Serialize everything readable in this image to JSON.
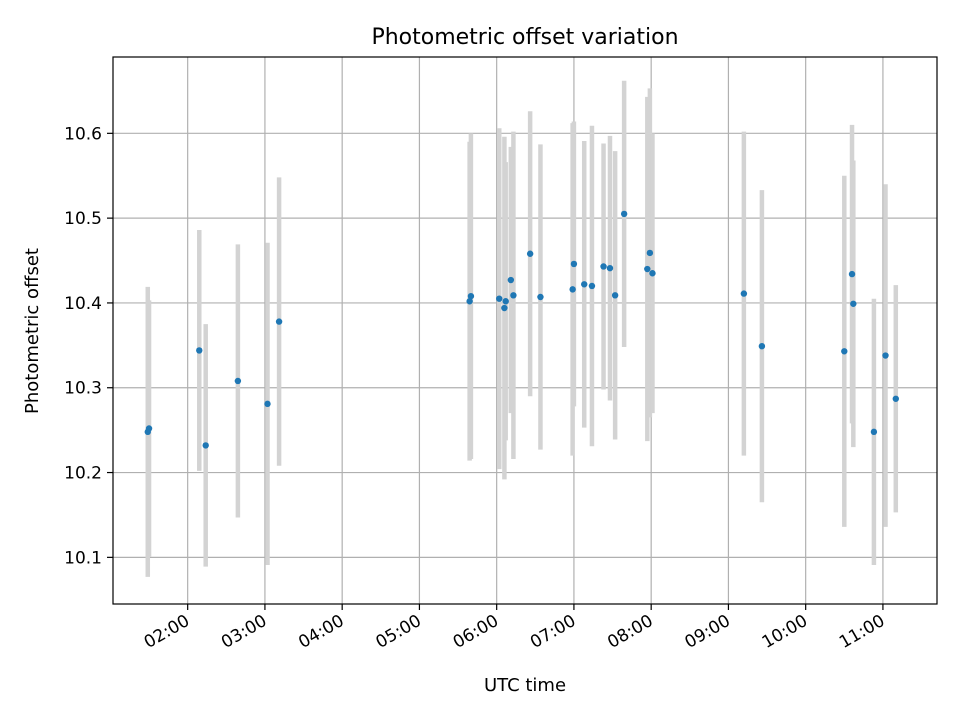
{
  "chart_data": {
    "type": "scatter",
    "title": "Photometric offset variation",
    "xlabel": "UTC time",
    "ylabel": "Photometric offset",
    "x_unit": "UTC hours",
    "xlim": [
      "01:02",
      "11:42"
    ],
    "ylim": [
      10.045,
      10.69
    ],
    "grid": true,
    "xticks": [
      "02:00",
      "03:00",
      "04:00",
      "05:00",
      "06:00",
      "07:00",
      "08:00",
      "09:00",
      "10:00",
      "11:00"
    ],
    "yticks": [
      "10.1",
      "10.2",
      "10.3",
      "10.4",
      "10.5",
      "10.6"
    ],
    "colors": {
      "point": "#1f77b4",
      "errorbar": "#d3d3d3",
      "grid": "#b0b0b0"
    },
    "series": [
      {
        "points": [
          {
            "x": "01:29",
            "y": 10.248,
            "ylow": 10.077,
            "yhigh": 10.419
          },
          {
            "x": "01:30",
            "y": 10.252,
            "ylow": 10.101,
            "yhigh": 10.403
          },
          {
            "x": "02:09",
            "y": 10.344,
            "ylow": 10.202,
            "yhigh": 10.486
          },
          {
            "x": "02:14",
            "y": 10.232,
            "ylow": 10.089,
            "yhigh": 10.375
          },
          {
            "x": "02:39",
            "y": 10.308,
            "ylow": 10.147,
            "yhigh": 10.469
          },
          {
            "x": "03:02",
            "y": 10.281,
            "ylow": 10.091,
            "yhigh": 10.471
          },
          {
            "x": "03:11",
            "y": 10.378,
            "ylow": 10.208,
            "yhigh": 10.548
          },
          {
            "x": "05:39",
            "y": 10.402,
            "ylow": 10.214,
            "yhigh": 10.59
          },
          {
            "x": "05:40",
            "y": 10.408,
            "ylow": 10.216,
            "yhigh": 10.6
          },
          {
            "x": "06:02",
            "y": 10.405,
            "ylow": 10.204,
            "yhigh": 10.606
          },
          {
            "x": "06:06",
            "y": 10.394,
            "ylow": 10.192,
            "yhigh": 10.596
          },
          {
            "x": "06:07",
            "y": 10.402,
            "ylow": 10.238,
            "yhigh": 10.566
          },
          {
            "x": "06:11",
            "y": 10.427,
            "ylow": 10.27,
            "yhigh": 10.584
          },
          {
            "x": "06:13",
            "y": 10.409,
            "ylow": 10.216,
            "yhigh": 10.602
          },
          {
            "x": "06:26",
            "y": 10.458,
            "ylow": 10.29,
            "yhigh": 10.626
          },
          {
            "x": "06:34",
            "y": 10.407,
            "ylow": 10.227,
            "yhigh": 10.587
          },
          {
            "x": "06:59",
            "y": 10.416,
            "ylow": 10.22,
            "yhigh": 10.612
          },
          {
            "x": "07:00",
            "y": 10.446,
            "ylow": 10.278,
            "yhigh": 10.614
          },
          {
            "x": "07:08",
            "y": 10.422,
            "ylow": 10.253,
            "yhigh": 10.591
          },
          {
            "x": "07:14",
            "y": 10.42,
            "ylow": 10.231,
            "yhigh": 10.609
          },
          {
            "x": "07:23",
            "y": 10.443,
            "ylow": 10.298,
            "yhigh": 10.588
          },
          {
            "x": "07:28",
            "y": 10.441,
            "ylow": 10.285,
            "yhigh": 10.597
          },
          {
            "x": "07:32",
            "y": 10.409,
            "ylow": 10.239,
            "yhigh": 10.579
          },
          {
            "x": "07:39",
            "y": 10.505,
            "ylow": 10.348,
            "yhigh": 10.662
          },
          {
            "x": "07:57",
            "y": 10.44,
            "ylow": 10.237,
            "yhigh": 10.643
          },
          {
            "x": "07:59",
            "y": 10.459,
            "ylow": 10.265,
            "yhigh": 10.653
          },
          {
            "x": "08:01",
            "y": 10.435,
            "ylow": 10.27,
            "yhigh": 10.6
          },
          {
            "x": "09:12",
            "y": 10.411,
            "ylow": 10.22,
            "yhigh": 10.602
          },
          {
            "x": "09:26",
            "y": 10.349,
            "ylow": 10.165,
            "yhigh": 10.533
          },
          {
            "x": "10:30",
            "y": 10.343,
            "ylow": 10.136,
            "yhigh": 10.55
          },
          {
            "x": "10:36",
            "y": 10.434,
            "ylow": 10.258,
            "yhigh": 10.61
          },
          {
            "x": "10:37",
            "y": 10.399,
            "ylow": 10.23,
            "yhigh": 10.568
          },
          {
            "x": "10:53",
            "y": 10.248,
            "ylow": 10.091,
            "yhigh": 10.405
          },
          {
            "x": "11:02",
            "y": 10.338,
            "ylow": 10.136,
            "yhigh": 10.54
          },
          {
            "x": "11:10",
            "y": 10.287,
            "ylow": 10.153,
            "yhigh": 10.421
          }
        ]
      }
    ]
  }
}
